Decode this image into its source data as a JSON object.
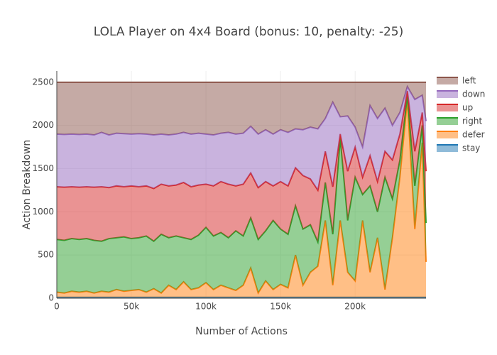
{
  "chart_data": {
    "type": "stacked-area",
    "title": "LOLA Player on 4x4 Board (bonus: 10, penalty: -25)",
    "x_label": "Number of Actions",
    "y_label": "Action Breakdown",
    "x": [
      0,
      5000,
      10000,
      15000,
      20000,
      25000,
      30000,
      35000,
      40000,
      45000,
      50000,
      55000,
      60000,
      65000,
      70000,
      75000,
      80000,
      85000,
      90000,
      95000,
      100000,
      105000,
      110000,
      115000,
      120000,
      125000,
      130000,
      135000,
      140000,
      145000,
      150000,
      155000,
      160000,
      165000,
      170000,
      175000,
      180000,
      185000,
      190000,
      195000,
      200000,
      205000,
      210000,
      215000,
      220000,
      225000,
      230000,
      235000,
      240000,
      245000,
      247500
    ],
    "series": [
      {
        "name": "stay",
        "color": "#1f77b4",
        "values": [
          10,
          10,
          10,
          10,
          10,
          10,
          10,
          10,
          10,
          10,
          10,
          10,
          10,
          10,
          10,
          10,
          10,
          10,
          10,
          10,
          10,
          10,
          10,
          10,
          10,
          10,
          10,
          10,
          10,
          10,
          10,
          10,
          10,
          10,
          10,
          10,
          10,
          10,
          10,
          10,
          10,
          10,
          10,
          10,
          10,
          10,
          10,
          10,
          10,
          10,
          10
        ]
      },
      {
        "name": "defer",
        "color": "#ff7f0e",
        "values": [
          60,
          50,
          70,
          60,
          70,
          50,
          70,
          60,
          90,
          70,
          80,
          90,
          60,
          100,
          50,
          140,
          90,
          180,
          90,
          110,
          170,
          90,
          140,
          110,
          80,
          140,
          340,
          50,
          190,
          90,
          150,
          110,
          490,
          140,
          290,
          360,
          890,
          140,
          890,
          290,
          190,
          890,
          290,
          690,
          90,
          690,
          1390,
          2290,
          790,
          1790,
          410
        ]
      },
      {
        "name": "right",
        "color": "#2ca02c",
        "values": [
          610,
          610,
          610,
          610,
          610,
          610,
          580,
          620,
          600,
          630,
          600,
          600,
          650,
          550,
          680,
          550,
          620,
          510,
          580,
          610,
          640,
          620,
          610,
          580,
          690,
          570,
          580,
          620,
          580,
          800,
          640,
          620,
          570,
          650,
          550,
          280,
          440,
          590,
          950,
          600,
          1200,
          300,
          1000,
          300,
          1300,
          450,
          200,
          50,
          500,
          200,
          450
        ]
      },
      {
        "name": "up",
        "color": "#d62728",
        "values": [
          610,
          615,
          600,
          605,
          600,
          615,
          630,
          590,
          600,
          580,
          610,
          590,
          580,
          610,
          580,
          600,
          590,
          640,
          610,
          580,
          500,
          580,
          590,
          620,
          520,
          600,
          520,
          600,
          570,
          400,
          550,
          560,
          440,
          620,
          530,
          600,
          360,
          550,
          50,
          570,
          350,
          200,
          350,
          350,
          300,
          450,
          300,
          50,
          400,
          150,
          600
        ]
      },
      {
        "name": "down",
        "color": "#9467bd",
        "values": [
          610,
          610,
          610,
          610,
          610,
          605,
          630,
          610,
          610,
          615,
          600,
          615,
          600,
          620,
          580,
          590,
          590,
          580,
          610,
          600,
          580,
          590,
          560,
          600,
          600,
          590,
          540,
          620,
          600,
          600,
          600,
          620,
          450,
          530,
          600,
          710,
          380,
          980,
          200,
          640,
          230,
          350,
          580,
          730,
          500,
          400,
          250,
          50,
          600,
          200,
          580
        ]
      },
      {
        "name": "left",
        "color": "#8c564b",
        "values": [
          600,
          605,
          600,
          605,
          600,
          610,
          580,
          610,
          590,
          595,
          600,
          595,
          600,
          610,
          600,
          610,
          600,
          580,
          600,
          590,
          600,
          610,
          590,
          580,
          600,
          590,
          510,
          600,
          550,
          600,
          550,
          580,
          540,
          550,
          520,
          540,
          420,
          230,
          400,
          390,
          520,
          750,
          270,
          420,
          300,
          500,
          350,
          50,
          200,
          150,
          450
        ]
      }
    ],
    "xlim": [
      0,
      247500
    ],
    "ylim": [
      0,
      2630
    ],
    "xticks": [
      0,
      {
        "value": 50000,
        "label": "50k"
      },
      {
        "value": 100000,
        "label": "100k"
      },
      {
        "value": 150000,
        "label": "150k"
      },
      {
        "value": 200000,
        "label": "200k"
      }
    ],
    "yticks": [
      0,
      500,
      1000,
      1500,
      2000,
      2500
    ],
    "grid": true,
    "legend": "top-right"
  }
}
